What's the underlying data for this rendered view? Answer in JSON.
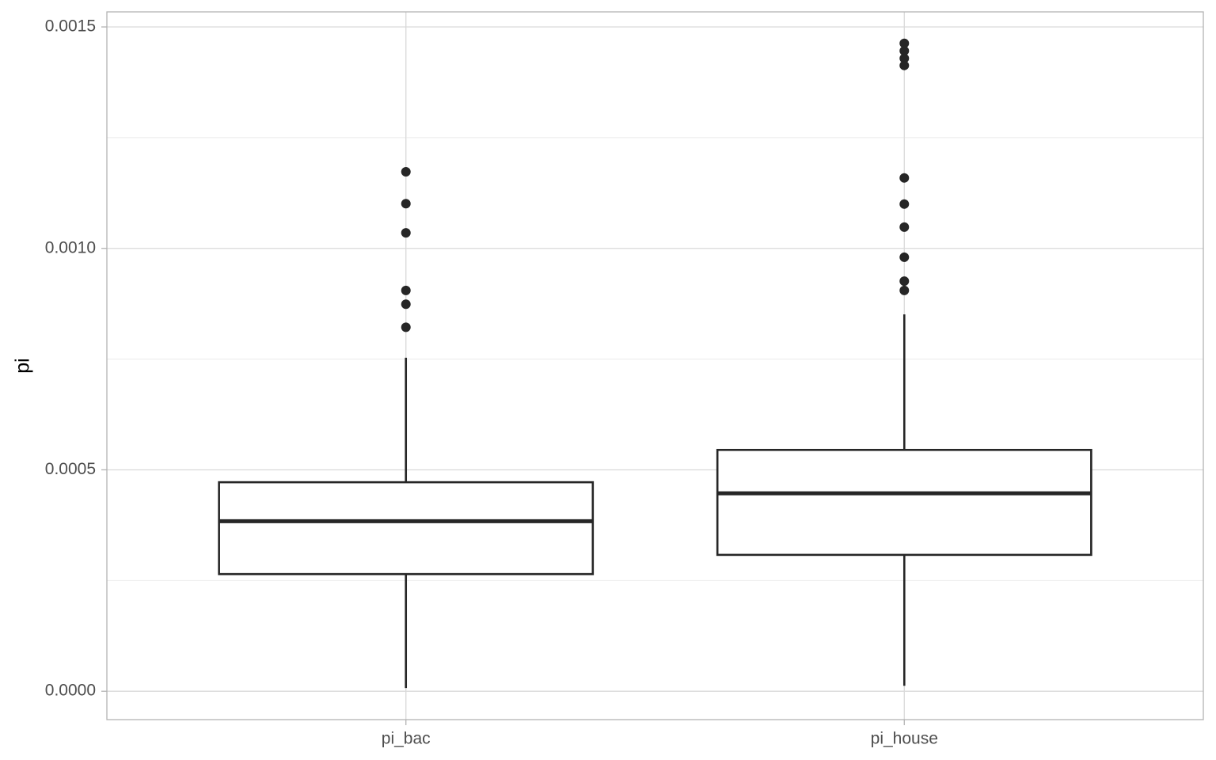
{
  "chart_data": {
    "type": "boxplot",
    "y_label": "pi",
    "categories": [
      "pi_bac",
      "pi_house"
    ],
    "whisker_low": [
      7.2e-06,
      1.25e-05
    ],
    "q1": [
      0.0002646,
      0.000308
    ],
    "median": [
      0.000384,
      0.000447
    ],
    "q3": [
      0.000472,
      0.000545
    ],
    "whisker_high": [
      0.000753,
      0.000851
    ],
    "outliers": [
      [
        0.000822,
        0.000874,
        0.000905,
        0.001035,
        0.001101,
        0.001173
      ],
      [
        0.000905,
        0.000926,
        0.00098,
        0.001048,
        0.0011,
        0.001159,
        0.001413,
        0.001429,
        0.001446,
        0.001463
      ]
    ],
    "ylim": [
      -6.4e-05,
      0.001534
    ],
    "yticks": [
      {
        "value": 0,
        "label": "0.0000"
      },
      {
        "value": 0.0005,
        "label": "0.0005"
      },
      {
        "value": 0.001,
        "label": "0.0010"
      },
      {
        "value": 0.0015,
        "label": "0.0015"
      }
    ],
    "minor_yticks": [
      0.00025,
      0.00075,
      0.00125
    ],
    "grid": true,
    "color": "#262626"
  }
}
